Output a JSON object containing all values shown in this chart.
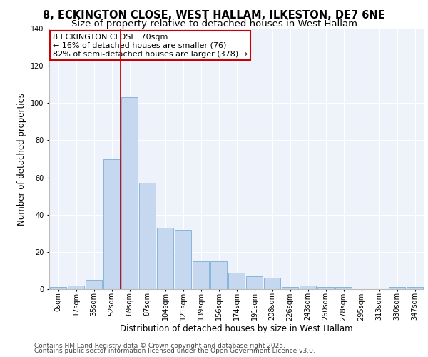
{
  "title1": "8, ECKINGTON CLOSE, WEST HALLAM, ILKESTON, DE7 6NE",
  "title2": "Size of property relative to detached houses in West Hallam",
  "xlabel": "Distribution of detached houses by size in West Hallam",
  "ylabel": "Number of detached properties",
  "footnote1": "Contains HM Land Registry data © Crown copyright and database right 2025.",
  "footnote2": "Contains public sector information licensed under the Open Government Licence v3.0.",
  "annotation_line1": "8 ECKINGTON CLOSE: 70sqm",
  "annotation_line2": "← 16% of detached houses are smaller (76)",
  "annotation_line3": "82% of semi-detached houses are larger (378) →",
  "bar_categories": [
    "0sqm",
    "17sqm",
    "35sqm",
    "52sqm",
    "69sqm",
    "87sqm",
    "104sqm",
    "121sqm",
    "139sqm",
    "156sqm",
    "174sqm",
    "191sqm",
    "208sqm",
    "226sqm",
    "243sqm",
    "260sqm",
    "278sqm",
    "295sqm",
    "313sqm",
    "330sqm",
    "347sqm"
  ],
  "bar_values": [
    1,
    2,
    5,
    70,
    103,
    57,
    33,
    32,
    15,
    15,
    9,
    7,
    6,
    1,
    2,
    1,
    1,
    0,
    0,
    1,
    1
  ],
  "bar_color": "#c5d8f0",
  "bar_edge_color": "#7aafd4",
  "highlight_line_color": "#cc0000",
  "box_color": "#cc0000",
  "highlight_bar_index": 4,
  "ylim": [
    0,
    140
  ],
  "yticks": [
    0,
    20,
    40,
    60,
    80,
    100,
    120,
    140
  ],
  "bg_color": "#eef2fb",
  "grid_color": "#ffffff",
  "title_fontsize": 10.5,
  "subtitle_fontsize": 9.5,
  "axis_label_fontsize": 8.5,
  "tick_fontsize": 7,
  "annotation_fontsize": 8,
  "footnote_fontsize": 6.5
}
